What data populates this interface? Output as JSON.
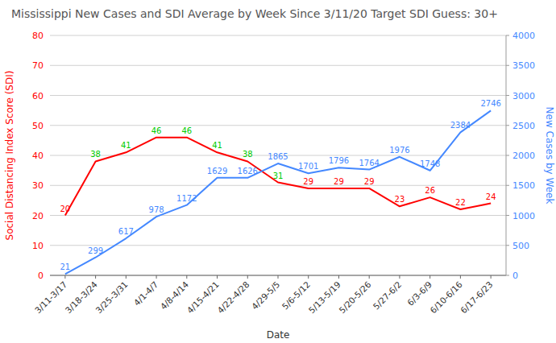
{
  "chart_data": {
    "type": "line",
    "title": "Mississippi New Cases and SDI Average by Week Since 3/11/20 Target SDI Guess: 30+",
    "x_label": "Date",
    "y_label": "Social Distancing Index Score (SDI)",
    "y2_label": "New Cases by Week",
    "categories": [
      "3/11-3/17",
      "3/18-3/24",
      "3/25-3/31",
      "4/1-4/7",
      "4/8-4/14",
      "4/15-4/21",
      "4/22-4/28",
      "4/29-5/5",
      "5/6-5/12",
      "5/13-5/19",
      "5/20-5/26",
      "5/27-6/2",
      "6/3-6/9",
      "6/10-6/16",
      "6/17-6/23"
    ],
    "series": [
      {
        "color": "#ff0000",
        "axis": "y",
        "values": [
          20,
          38,
          41,
          46,
          46,
          41,
          38,
          31,
          29,
          29,
          29,
          23,
          26,
          22,
          24
        ],
        "colors": [
          "#ff0000",
          "#00cc00",
          "#00cc00",
          "#00cc00",
          "#00cc00",
          "#00cc00",
          "#00cc00",
          "#00cc00",
          "#ff0000",
          "#ff0000",
          "#ff0000",
          "#ff0000",
          "#ff0000",
          "#ff0000",
          "#ff0000"
        ]
      },
      {
        "color": "#4488ff",
        "axis": "y2",
        "values": [
          21,
          299,
          617,
          978,
          1172,
          1629,
          1626,
          1865,
          1701,
          1796,
          1764,
          1976,
          1748,
          2384,
          2746
        ]
      }
    ],
    "ylim": [
      0,
      80
    ],
    "yticks": [
      0,
      10,
      20,
      30,
      40,
      50,
      60,
      70,
      80
    ],
    "y2lim": [
      0,
      4000
    ],
    "y2ticks": [
      0,
      500,
      1000,
      1500,
      2000,
      2500,
      3000,
      3500,
      4000
    ],
    "grid": true,
    "data_labels": true
  }
}
